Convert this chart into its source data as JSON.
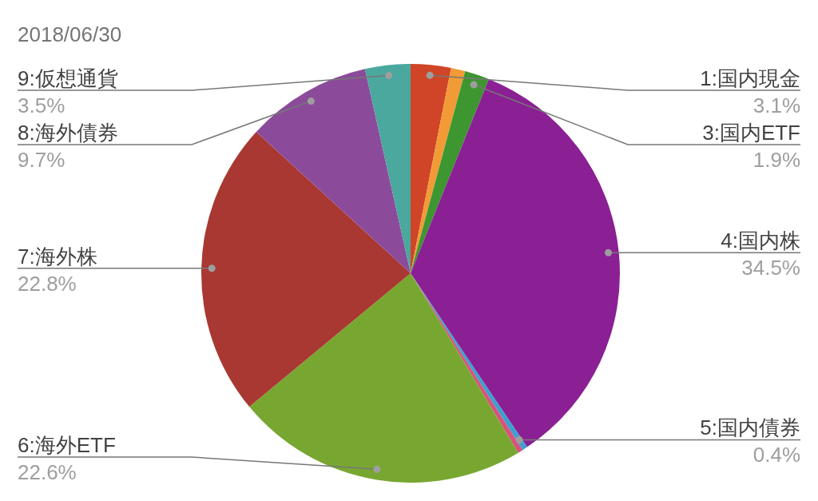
{
  "chart_data": {
    "type": "pie",
    "title": "2018/06/30",
    "categories": [
      "1:国内現金",
      null,
      "3:国内ETF",
      "4:国内株",
      "5:国内債券",
      null,
      "6:海外ETF",
      "7:海外株",
      "8:海外債券",
      "9:仮想通貨"
    ],
    "values": [
      3.1,
      1.1,
      1.9,
      34.5,
      0.4,
      0.4,
      22.6,
      22.8,
      9.7,
      3.5
    ],
    "value_labels": [
      "3.1%",
      null,
      "1.9%",
      "34.5%",
      "0.4%",
      null,
      "22.6%",
      "22.8%",
      "9.7%",
      "3.5%"
    ],
    "colors": [
      "#d04527",
      "#f29b36",
      "#3d9630",
      "#8b1f94",
      "#3ba0d0",
      "#d9527b",
      "#78a731",
      "#a93832",
      "#8b4b9a",
      "#4aa89e"
    ]
  }
}
